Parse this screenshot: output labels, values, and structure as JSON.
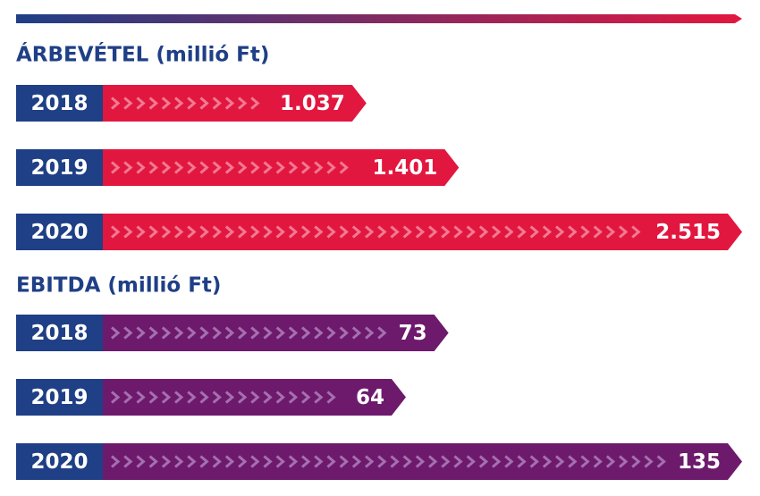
{
  "chart_data": [
    {
      "type": "bar",
      "orientation": "horizontal",
      "title": "ÁRBEVÉTEL (millió Ft)",
      "categories": [
        "2018",
        "2019",
        "2020"
      ],
      "values": [
        1037,
        1401,
        2515
      ],
      "value_labels": [
        "1.037",
        "1.401",
        "2.515"
      ],
      "color": "#e2173f",
      "chevron_color": "#f07a92",
      "category_color": "#1f3f86"
    },
    {
      "type": "bar",
      "orientation": "horizontal",
      "title": "EBITDA (millió Ft)",
      "categories": [
        "2018",
        "2019",
        "2020"
      ],
      "values": [
        73,
        64,
        135
      ],
      "color": "#6d1a6c",
      "chevron_color": "#a56fb0",
      "category_color": "#1f3f86"
    }
  ]
}
